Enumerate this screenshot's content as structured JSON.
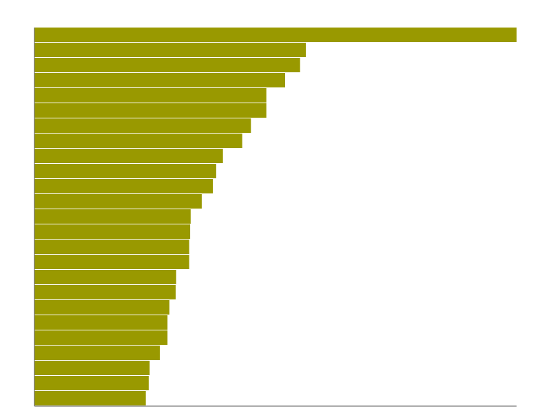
{
  "chart_data": {
    "type": "bar",
    "orientation": "horizontal",
    "color": "#999900",
    "values": [
      100,
      56.3,
      55.1,
      52,
      48.1,
      48.1,
      44.9,
      43.1,
      39.1,
      37.7,
      37,
      34.7,
      32.4,
      32.3,
      32.1,
      32.1,
      29.4,
      29.3,
      28,
      27.6,
      27.6,
      26,
      23.9,
      23.7,
      23.1
    ],
    "xlim": [
      0,
      100
    ]
  }
}
